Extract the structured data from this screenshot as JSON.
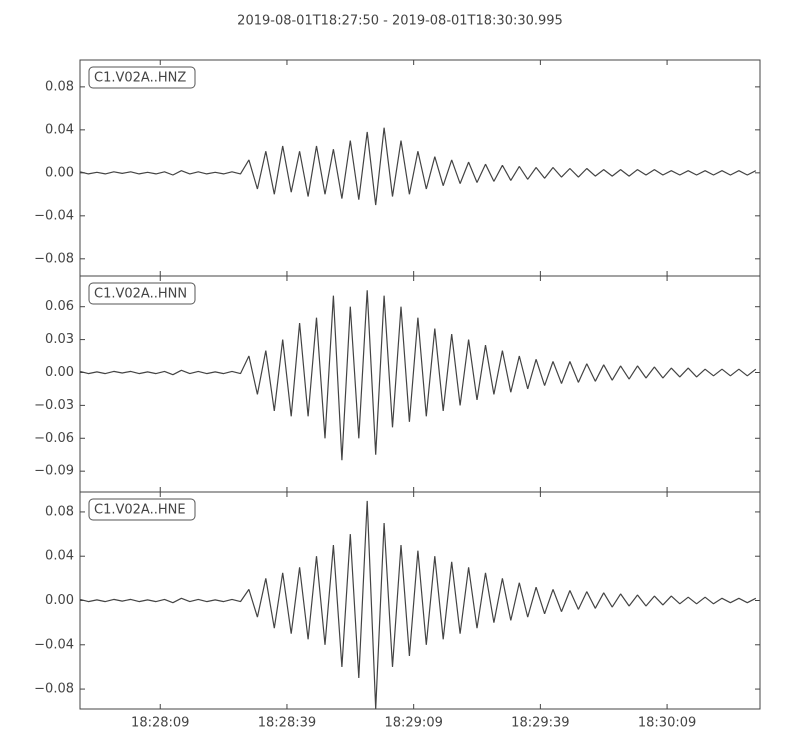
{
  "title": "2019-08-01T18:27:50  -  2019-08-01T18:30:30.995",
  "chart_data": [
    {
      "type": "line",
      "label": "C1.V02A..HNZ",
      "color": "#444444",
      "x": [
        "18:27:50",
        "18:27:52",
        "18:27:54",
        "18:27:56",
        "18:27:58",
        "18:28:00",
        "18:28:02",
        "18:28:04",
        "18:28:06",
        "18:28:08",
        "18:28:10",
        "18:28:12",
        "18:28:14",
        "18:28:16",
        "18:28:18",
        "18:28:20",
        "18:28:22",
        "18:28:24",
        "18:28:26",
        "18:28:28",
        "18:28:30",
        "18:28:32",
        "18:28:34",
        "18:28:36",
        "18:28:38",
        "18:28:40",
        "18:28:42",
        "18:28:44",
        "18:28:46",
        "18:28:48",
        "18:28:50",
        "18:28:52",
        "18:28:54",
        "18:28:56",
        "18:28:58",
        "18:29:00",
        "18:29:02",
        "18:29:04",
        "18:29:06",
        "18:29:08",
        "18:29:10",
        "18:29:12",
        "18:29:14",
        "18:29:16",
        "18:29:18",
        "18:29:20",
        "18:29:22",
        "18:29:24",
        "18:29:26",
        "18:29:28",
        "18:29:30",
        "18:29:32",
        "18:29:34",
        "18:29:36",
        "18:29:38",
        "18:29:40",
        "18:29:42",
        "18:29:44",
        "18:29:46",
        "18:29:48",
        "18:29:50",
        "18:29:52",
        "18:29:54",
        "18:29:56",
        "18:29:58",
        "18:30:00",
        "18:30:02",
        "18:30:04",
        "18:30:06",
        "18:30:08",
        "18:30:10",
        "18:30:12",
        "18:30:14",
        "18:30:16",
        "18:30:18",
        "18:30:20",
        "18:30:22",
        "18:30:24",
        "18:30:26",
        "18:30:28",
        "18:30:30"
      ],
      "values": [
        0.001,
        -0.001,
        0.0005,
        -0.001,
        0.001,
        -0.0005,
        0.001,
        -0.001,
        0.0005,
        -0.001,
        0.001,
        -0.002,
        0.002,
        -0.001,
        0.001,
        -0.001,
        0.0005,
        -0.001,
        0.001,
        -0.001,
        0.012,
        -0.015,
        0.02,
        -0.02,
        0.025,
        -0.018,
        0.02,
        -0.022,
        0.025,
        -0.02,
        0.022,
        -0.024,
        0.03,
        -0.025,
        0.038,
        -0.03,
        0.042,
        -0.022,
        0.03,
        -0.02,
        0.02,
        -0.015,
        0.015,
        -0.012,
        0.012,
        -0.01,
        0.01,
        -0.009,
        0.008,
        -0.008,
        0.007,
        -0.007,
        0.006,
        -0.006,
        0.005,
        -0.005,
        0.005,
        -0.004,
        0.004,
        -0.004,
        0.004,
        -0.003,
        0.003,
        -0.003,
        0.003,
        -0.003,
        0.003,
        -0.002,
        0.003,
        -0.002,
        0.002,
        -0.002,
        0.002,
        -0.002,
        0.002,
        -0.002,
        0.002,
        -0.002,
        0.002,
        -0.002,
        0.002
      ],
      "ylim": [
        -0.096,
        0.105
      ],
      "yticks": [
        {
          "value": -0.08,
          "label": "−0.08"
        },
        {
          "value": -0.04,
          "label": "−0.04"
        },
        {
          "value": 0,
          "label": "0.00"
        },
        0.04,
        0.08
      ]
    },
    {
      "type": "line",
      "label": "C1.V02A..HNN",
      "color": "#444444",
      "x": [
        "18:27:50",
        "18:27:52",
        "18:27:54",
        "18:27:56",
        "18:27:58",
        "18:28:00",
        "18:28:02",
        "18:28:04",
        "18:28:06",
        "18:28:08",
        "18:28:10",
        "18:28:12",
        "18:28:14",
        "18:28:16",
        "18:28:18",
        "18:28:20",
        "18:28:22",
        "18:28:24",
        "18:28:26",
        "18:28:28",
        "18:28:30",
        "18:28:32",
        "18:28:34",
        "18:28:36",
        "18:28:38",
        "18:28:40",
        "18:28:42",
        "18:28:44",
        "18:28:46",
        "18:28:48",
        "18:28:50",
        "18:28:52",
        "18:28:54",
        "18:28:56",
        "18:28:58",
        "18:29:00",
        "18:29:02",
        "18:29:04",
        "18:29:06",
        "18:29:08",
        "18:29:10",
        "18:29:12",
        "18:29:14",
        "18:29:16",
        "18:29:18",
        "18:29:20",
        "18:29:22",
        "18:29:24",
        "18:29:26",
        "18:29:28",
        "18:29:30",
        "18:29:32",
        "18:29:34",
        "18:29:36",
        "18:29:38",
        "18:29:40",
        "18:29:42",
        "18:29:44",
        "18:29:46",
        "18:29:48",
        "18:29:50",
        "18:29:52",
        "18:29:54",
        "18:29:56",
        "18:29:58",
        "18:30:00",
        "18:30:02",
        "18:30:04",
        "18:30:06",
        "18:30:08",
        "18:30:10",
        "18:30:12",
        "18:30:14",
        "18:30:16",
        "18:30:18",
        "18:30:20",
        "18:30:22",
        "18:30:24",
        "18:30:26",
        "18:30:28",
        "18:30:30"
      ],
      "values": [
        0.001,
        -0.001,
        0.0005,
        -0.001,
        0.001,
        -0.0005,
        0.001,
        -0.001,
        0.0005,
        -0.001,
        0.001,
        -0.002,
        0.002,
        -0.001,
        0.001,
        -0.001,
        0.0005,
        -0.001,
        0.001,
        -0.001,
        0.015,
        -0.02,
        0.02,
        -0.035,
        0.03,
        -0.04,
        0.045,
        -0.04,
        0.05,
        -0.06,
        0.07,
        -0.08,
        0.06,
        -0.06,
        0.075,
        -0.075,
        0.07,
        -0.05,
        0.06,
        -0.045,
        0.05,
        -0.04,
        0.04,
        -0.035,
        0.035,
        -0.03,
        0.03,
        -0.025,
        0.025,
        -0.02,
        0.02,
        -0.018,
        0.015,
        -0.015,
        0.012,
        -0.012,
        0.01,
        -0.01,
        0.01,
        -0.009,
        0.008,
        -0.008,
        0.007,
        -0.007,
        0.006,
        -0.006,
        0.006,
        -0.005,
        0.005,
        -0.005,
        0.004,
        -0.004,
        0.004,
        -0.004,
        0.003,
        -0.003,
        0.003,
        -0.003,
        0.003,
        -0.003,
        0.003
      ],
      "ylim": [
        -0.109,
        0.088
      ],
      "yticks": [
        {
          "value": -0.09,
          "label": "−0.09"
        },
        {
          "value": -0.06,
          "label": "−0.06"
        },
        {
          "value": -0.03,
          "label": "−0.03"
        },
        {
          "value": 0,
          "label": "0.00"
        },
        0.03,
        0.06
      ]
    },
    {
      "type": "line",
      "label": "C1.V02A..HNE",
      "color": "#444444",
      "x": [
        "18:27:50",
        "18:27:52",
        "18:27:54",
        "18:27:56",
        "18:27:58",
        "18:28:00",
        "18:28:02",
        "18:28:04",
        "18:28:06",
        "18:28:08",
        "18:28:10",
        "18:28:12",
        "18:28:14",
        "18:28:16",
        "18:28:18",
        "18:28:20",
        "18:28:22",
        "18:28:24",
        "18:28:26",
        "18:28:28",
        "18:28:30",
        "18:28:32",
        "18:28:34",
        "18:28:36",
        "18:28:38",
        "18:28:40",
        "18:28:42",
        "18:28:44",
        "18:28:46",
        "18:28:48",
        "18:28:50",
        "18:28:52",
        "18:28:54",
        "18:28:56",
        "18:28:58",
        "18:29:00",
        "18:29:02",
        "18:29:04",
        "18:29:06",
        "18:29:08",
        "18:29:10",
        "18:29:12",
        "18:29:14",
        "18:29:16",
        "18:29:18",
        "18:29:20",
        "18:29:22",
        "18:29:24",
        "18:29:26",
        "18:29:28",
        "18:29:30",
        "18:29:32",
        "18:29:34",
        "18:29:36",
        "18:29:38",
        "18:29:40",
        "18:29:42",
        "18:29:44",
        "18:29:46",
        "18:29:48",
        "18:29:50",
        "18:29:52",
        "18:29:54",
        "18:29:56",
        "18:29:58",
        "18:30:00",
        "18:30:02",
        "18:30:04",
        "18:30:06",
        "18:30:08",
        "18:30:10",
        "18:30:12",
        "18:30:14",
        "18:30:16",
        "18:30:18",
        "18:30:20",
        "18:30:22",
        "18:30:24",
        "18:30:26",
        "18:30:28",
        "18:30:30"
      ],
      "values": [
        0.001,
        -0.001,
        0.0005,
        -0.001,
        0.001,
        -0.0005,
        0.001,
        -0.001,
        0.0005,
        -0.001,
        0.001,
        -0.002,
        0.002,
        -0.001,
        0.001,
        -0.001,
        0.0005,
        -0.001,
        0.001,
        -0.001,
        0.01,
        -0.015,
        0.02,
        -0.025,
        0.025,
        -0.03,
        0.03,
        -0.035,
        0.04,
        -0.04,
        0.05,
        -0.06,
        0.06,
        -0.07,
        0.09,
        -0.098,
        0.07,
        -0.06,
        0.05,
        -0.05,
        0.045,
        -0.04,
        0.04,
        -0.035,
        0.035,
        -0.03,
        0.03,
        -0.025,
        0.025,
        -0.02,
        0.02,
        -0.018,
        0.016,
        -0.015,
        0.012,
        -0.012,
        0.01,
        -0.01,
        0.009,
        -0.008,
        0.008,
        -0.007,
        0.007,
        -0.006,
        0.006,
        -0.005,
        0.005,
        -0.005,
        0.004,
        -0.004,
        0.004,
        -0.003,
        0.003,
        -0.003,
        0.003,
        -0.003,
        0.002,
        -0.002,
        0.002,
        -0.002,
        0.002
      ],
      "ylim": [
        -0.098,
        0.098
      ],
      "yticks": [
        {
          "value": -0.08,
          "label": "−0.08"
        },
        {
          "value": -0.04,
          "label": "−0.04"
        },
        {
          "value": 0,
          "label": "0.00"
        },
        0.04,
        0.08
      ],
      "xticks": [
        "18:28:09",
        "18:28:39",
        "18:29:09",
        "18:29:39",
        "18:30:09"
      ]
    }
  ]
}
